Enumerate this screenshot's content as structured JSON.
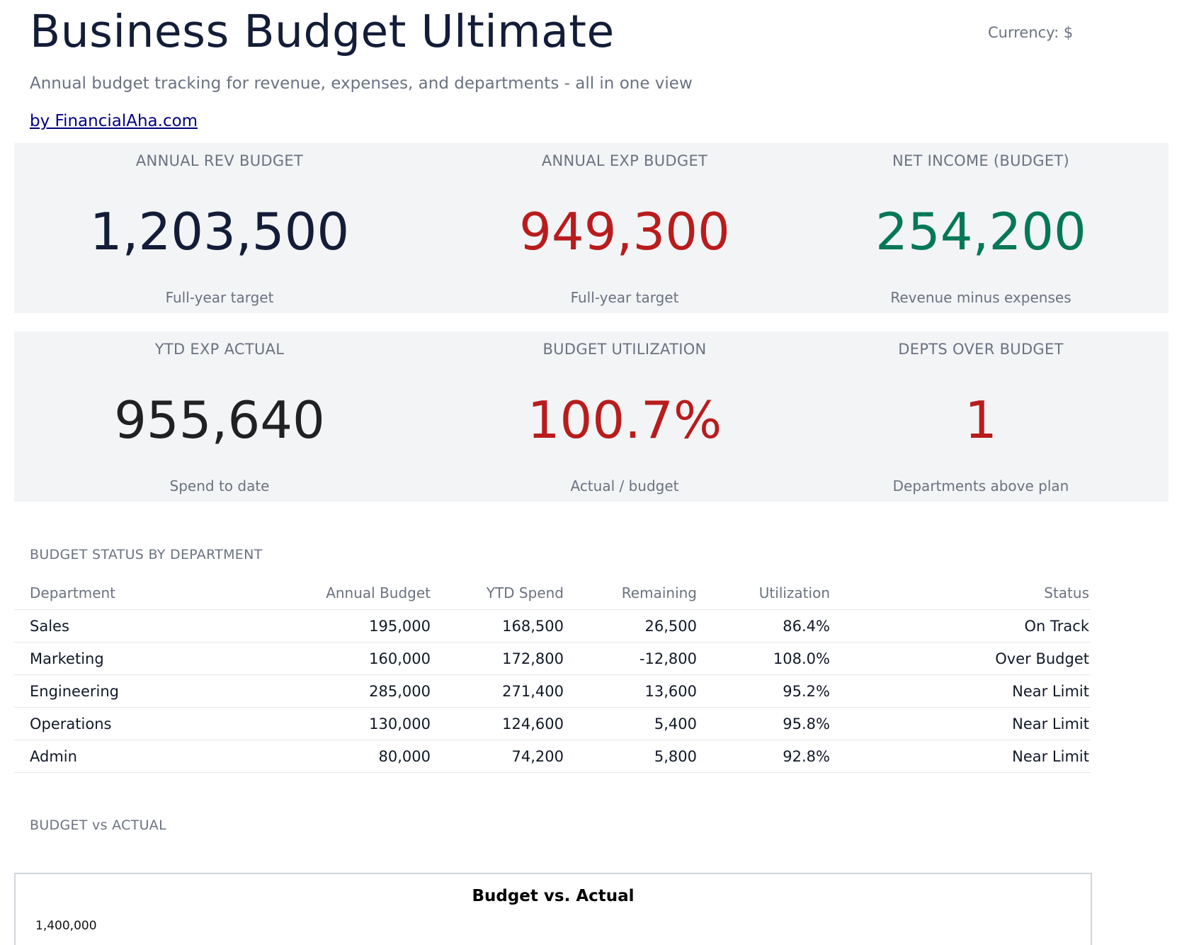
{
  "header": {
    "title": "Business Budget Ultimate",
    "currency": "Currency: $",
    "subtitle": "Annual budget tracking for revenue, expenses, and departments - all in one view",
    "byline": "by FinancialAha.com"
  },
  "kpis": [
    {
      "label": "ANNUAL REV BUDGET",
      "value": "1,203,500",
      "sub": "Full-year target",
      "color": "#131d38"
    },
    {
      "label": "ANNUAL EXP BUDGET",
      "value": "949,300",
      "sub": "Full-year target",
      "color": "#b91c1c"
    },
    {
      "label": "NET INCOME (BUDGET)",
      "value": "254,200",
      "sub": "Revenue minus expenses",
      "color": "#047857"
    },
    {
      "label": "YTD EXP ACTUAL",
      "value": "955,640",
      "sub": "Spend to date",
      "color": "#1f2123"
    },
    {
      "label": "BUDGET UTILIZATION",
      "value": "100.7%",
      "sub": "Actual / budget",
      "color": "#b91c1c"
    },
    {
      "label": "DEPTS OVER BUDGET",
      "value": "1",
      "sub": "Departments above plan",
      "color": "#b91c1c"
    }
  ],
  "dept_section": {
    "title": "BUDGET STATUS BY DEPARTMENT",
    "columns": [
      "Department",
      "Annual Budget",
      "YTD Spend",
      "Remaining",
      "Utilization",
      "Status"
    ],
    "rows": [
      [
        "Sales",
        "195,000",
        "168,500",
        "26,500",
        "86.4%",
        "On Track"
      ],
      [
        "Marketing",
        "160,000",
        "172,800",
        "-12,800",
        "108.0%",
        "Over Budget"
      ],
      [
        "Engineering",
        "285,000",
        "271,400",
        "13,600",
        "95.2%",
        "Near Limit"
      ],
      [
        "Operations",
        "130,000",
        "124,600",
        "5,400",
        "95.8%",
        "Near Limit"
      ],
      [
        "Admin",
        "80,000",
        "74,200",
        "5,800",
        "92.8%",
        "Near Limit"
      ]
    ]
  },
  "chart_section": {
    "title": "BUDGET vs ACTUAL",
    "chart_title": "Budget vs. Actual",
    "top_tick": "1,400,000"
  }
}
